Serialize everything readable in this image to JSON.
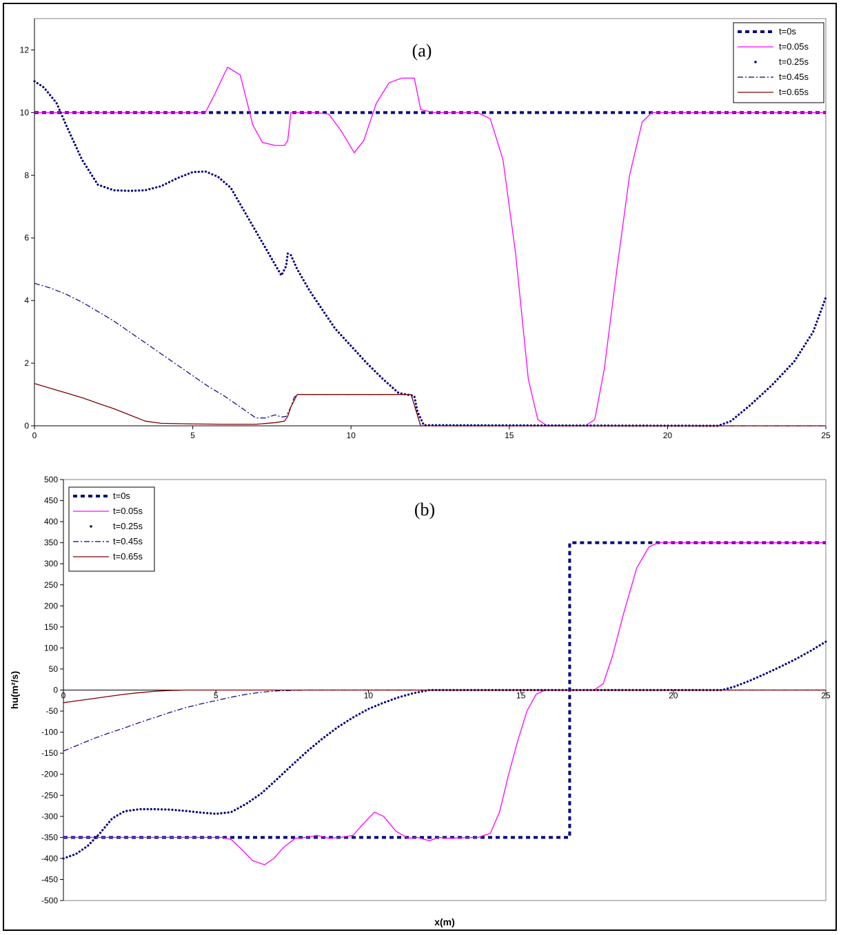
{
  "colors": {
    "t0": "#000080",
    "t005": "#ff00ff",
    "t025": "#000080",
    "t045": "#000080",
    "t065": "#800000"
  },
  "chart_data": [
    {
      "type": "line",
      "panel_label": "(a)",
      "xlabel": "",
      "ylabel": "",
      "xlim": [
        0,
        25
      ],
      "ylim": [
        0,
        13
      ],
      "xticks": [
        0,
        5,
        10,
        15,
        20,
        25
      ],
      "yticks": [
        0,
        2,
        4,
        6,
        8,
        10,
        12
      ],
      "legend_position": "top-right",
      "series": [
        {
          "name": "t=0s",
          "style": "dashed-bold",
          "color": "#000080",
          "x": [
            0,
            25
          ],
          "y": [
            10,
            10
          ]
        },
        {
          "name": "t=0.05s",
          "style": "solid",
          "color": "#ff00ff",
          "x": [
            0,
            5.4,
            5.7,
            6.1,
            6.5,
            6.9,
            7.2,
            7.6,
            7.9,
            8.0,
            8.1,
            8.4,
            8.9,
            9.3,
            9.7,
            10.1,
            10.4,
            10.8,
            11.2,
            11.6,
            12.0,
            12.2,
            12.6,
            14.0,
            14.4,
            14.8,
            15.2,
            15.6,
            15.9,
            16.2,
            17.4,
            17.7,
            18.0,
            18.4,
            18.8,
            19.2,
            19.5,
            20.0,
            25
          ],
          "y": [
            10,
            10,
            10.6,
            11.45,
            11.2,
            9.6,
            9.05,
            8.95,
            8.95,
            9.1,
            10,
            10,
            10,
            9.95,
            9.4,
            8.72,
            9.1,
            10.3,
            10.95,
            11.1,
            11.1,
            10.1,
            10,
            10,
            9.8,
            8.5,
            5.5,
            1.5,
            0.2,
            0,
            0,
            0.2,
            1.8,
            5.0,
            8.0,
            9.7,
            10,
            10,
            10
          ]
        },
        {
          "name": "t=0.25s",
          "style": "dotted",
          "color": "#000080",
          "x": [
            0,
            0.3,
            0.7,
            1.0,
            1.5,
            2.0,
            2.5,
            3.0,
            3.5,
            4.0,
            4.5,
            5.0,
            5.4,
            5.8,
            6.2,
            6.6,
            7.0,
            7.4,
            7.8,
            7.95,
            8.0,
            8.1,
            8.3,
            8.7,
            9.1,
            9.5,
            10.0,
            10.5,
            11.0,
            11.5,
            11.9,
            12.0,
            12.1,
            12.3,
            21.6,
            22.0,
            22.6,
            23.3,
            24.0,
            24.6,
            25
          ],
          "y": [
            11.0,
            10.8,
            10.3,
            9.6,
            8.5,
            7.7,
            7.52,
            7.5,
            7.52,
            7.65,
            7.9,
            8.1,
            8.12,
            7.95,
            7.6,
            6.9,
            6.2,
            5.5,
            4.8,
            5.1,
            5.5,
            5.45,
            5.0,
            4.3,
            3.7,
            3.1,
            2.55,
            2.0,
            1.5,
            1.05,
            0.97,
            0.95,
            0.45,
            0.02,
            0.0,
            0.15,
            0.65,
            1.3,
            2.05,
            3.0,
            4.1
          ]
        },
        {
          "name": "t=0.45s",
          "style": "dash-dot",
          "color": "#000080",
          "x": [
            0,
            0.5,
            1.0,
            1.5,
            2.0,
            2.5,
            3.0,
            3.5,
            4.0,
            4.5,
            5.0,
            5.5,
            6.0,
            6.5,
            7.0,
            7.3,
            7.6,
            7.8,
            7.95,
            8.1,
            8.2,
            8.3,
            11.9,
            12.05,
            12.2,
            25
          ],
          "y": [
            4.55,
            4.4,
            4.2,
            3.95,
            3.65,
            3.35,
            3.0,
            2.65,
            2.3,
            1.95,
            1.6,
            1.25,
            0.95,
            0.6,
            0.25,
            0.25,
            0.35,
            0.28,
            0.3,
            0.6,
            0.9,
            1.0,
            1.0,
            0.5,
            0.0,
            0.0
          ]
        },
        {
          "name": "t=0.65s",
          "style": "solid",
          "color": "#800000",
          "x": [
            0,
            0.5,
            1.0,
            1.5,
            2.0,
            2.5,
            3.0,
            3.5,
            4.0,
            5.0,
            6.0,
            7.0,
            7.6,
            7.9,
            8.0,
            8.1,
            8.3,
            11.9,
            12.05,
            12.2,
            25
          ],
          "y": [
            1.35,
            1.2,
            1.05,
            0.9,
            0.72,
            0.55,
            0.35,
            0.15,
            0.08,
            0.06,
            0.05,
            0.05,
            0.1,
            0.15,
            0.3,
            0.6,
            1.0,
            1.0,
            0.5,
            0.0,
            0.0
          ]
        }
      ]
    },
    {
      "type": "line",
      "panel_label": "(b)",
      "xlabel": "x(m)",
      "ylabel": "hu(m²/s)",
      "xlim": [
        0,
        25
      ],
      "ylim": [
        -500,
        500
      ],
      "xticks": [
        0,
        5,
        10,
        15,
        20,
        25
      ],
      "yticks": [
        -500,
        -450,
        -400,
        -350,
        -300,
        -250,
        -200,
        -150,
        -100,
        -50,
        0,
        50,
        100,
        150,
        200,
        250,
        300,
        350,
        400,
        450,
        500
      ],
      "legend_position": "top-left",
      "series": [
        {
          "name": "t=0s",
          "style": "dashed-bold",
          "color": "#000080",
          "x": [
            0,
            16.6,
            16.6,
            25
          ],
          "y": [
            -350,
            -350,
            350,
            350
          ]
        },
        {
          "name": "t=0.05s",
          "style": "solid",
          "color": "#ff00ff",
          "x": [
            0,
            5.2,
            5.5,
            5.8,
            6.2,
            6.6,
            6.9,
            7.2,
            7.6,
            8.0,
            8.3,
            8.7,
            9.1,
            9.5,
            9.8,
            10.2,
            10.5,
            10.9,
            11.3,
            11.6,
            12.0,
            12.3,
            12.6,
            13.6,
            14.0,
            14.3,
            14.6,
            14.9,
            15.2,
            15.5,
            15.8,
            17.4,
            17.7,
            18.0,
            18.4,
            18.8,
            19.2,
            19.5,
            20.0,
            25
          ],
          "y": [
            -350,
            -350,
            -355,
            -375,
            -405,
            -415,
            -400,
            -375,
            -352,
            -350,
            -345,
            -352,
            -350,
            -345,
            -320,
            -290,
            -300,
            -335,
            -352,
            -350,
            -358,
            -350,
            -352,
            -350,
            -340,
            -290,
            -200,
            -120,
            -50,
            -10,
            0,
            0,
            15,
            80,
            190,
            290,
            340,
            350,
            350,
            350
          ]
        },
        {
          "name": "t=0.25s",
          "style": "dotted",
          "color": "#000080",
          "x": [
            0,
            0.4,
            0.8,
            1.2,
            1.6,
            2.0,
            2.5,
            3.0,
            3.5,
            4.0,
            4.5,
            5.0,
            5.5,
            6.0,
            6.5,
            7.0,
            7.5,
            8.0,
            8.5,
            9.0,
            9.5,
            10.0,
            10.5,
            11.0,
            11.5,
            12.0,
            21.6,
            22.0,
            22.5,
            23.0,
            23.5,
            24.0,
            24.5,
            25
          ],
          "y": [
            -400,
            -390,
            -370,
            -340,
            -305,
            -288,
            -283,
            -283,
            -284,
            -287,
            -291,
            -294,
            -290,
            -270,
            -245,
            -212,
            -178,
            -145,
            -115,
            -88,
            -65,
            -45,
            -30,
            -17,
            -7,
            0,
            0,
            8,
            22,
            38,
            55,
            73,
            93,
            115
          ]
        },
        {
          "name": "t=0.45s",
          "style": "dash-dot",
          "color": "#000080",
          "x": [
            0,
            0.5,
            1.0,
            1.5,
            2.0,
            2.5,
            3.0,
            3.5,
            4.0,
            4.5,
            5.0,
            5.5,
            6.0,
            6.5,
            7.0,
            7.5,
            8.0,
            25
          ],
          "y": [
            -145,
            -130,
            -115,
            -102,
            -90,
            -77,
            -65,
            -53,
            -42,
            -33,
            -25,
            -17,
            -10,
            -5,
            -2,
            -1,
            0,
            0
          ]
        },
        {
          "name": "t=0.65s",
          "style": "solid",
          "color": "#800000",
          "x": [
            0,
            0.5,
            1.0,
            1.5,
            2.0,
            2.5,
            3.0,
            3.5,
            4.0,
            25
          ],
          "y": [
            -30,
            -25,
            -20,
            -15,
            -10,
            -6,
            -3,
            -1,
            0,
            0
          ]
        }
      ]
    }
  ]
}
